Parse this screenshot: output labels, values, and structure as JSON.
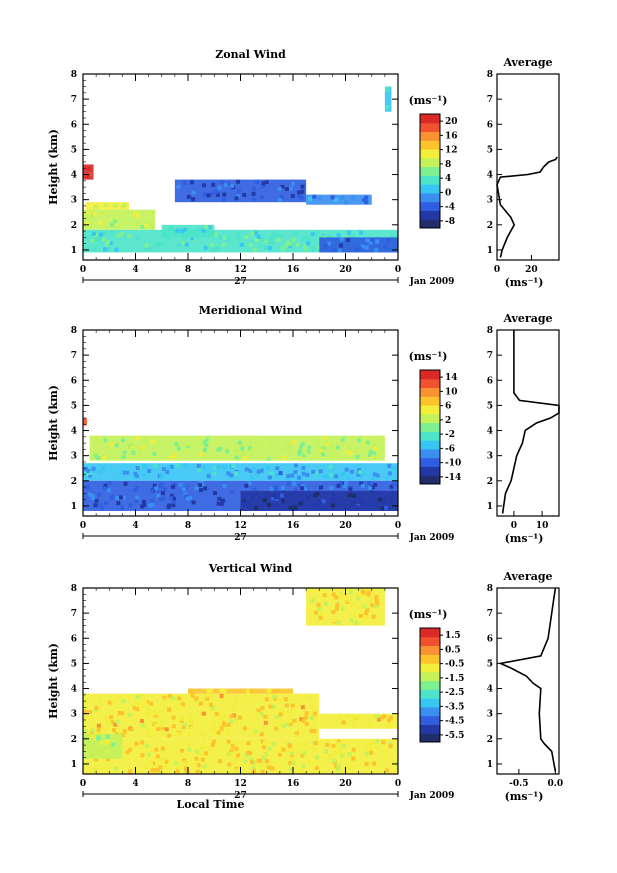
{
  "figure": {
    "xlabel": "Local Time",
    "ylabel": "Height (km)",
    "day_label": "27",
    "month_label": "Jan 2009",
    "unit_label": "(ms⁻¹)",
    "avg_title": "Average"
  },
  "chart_data": [
    {
      "type": "heatmap",
      "title": "Zonal Wind",
      "xlabel": "",
      "ylabel": "Height (km)",
      "x_ticks": [
        "0",
        "4",
        "8",
        "12",
        "16",
        "20",
        "0"
      ],
      "x_range": [
        0,
        24
      ],
      "y_ticks": [
        "1",
        "2",
        "3",
        "4",
        "5",
        "6",
        "7",
        "8"
      ],
      "y_range": [
        0.6,
        8.0
      ],
      "colorbar": {
        "label": "(ms⁻¹)",
        "ticks": [
          "-8",
          "-4",
          "0",
          "4",
          "8",
          "12",
          "16",
          "20"
        ],
        "range": [
          -10,
          22
        ]
      },
      "regions": [
        {
          "t": [
            0,
            0.8
          ],
          "h": [
            3.8,
            4.4
          ],
          "value": 21
        },
        {
          "t": [
            0.2,
            3.5
          ],
          "h": [
            2.6,
            2.9
          ],
          "value": 10
        },
        {
          "t": [
            0,
            5.5
          ],
          "h": [
            1.8,
            2.6
          ],
          "value": 8
        },
        {
          "t": [
            0,
            24
          ],
          "h": [
            0.9,
            1.8
          ],
          "value": 4
        },
        {
          "t": [
            6,
            10
          ],
          "h": [
            1.5,
            2.0
          ],
          "value": 3
        },
        {
          "t": [
            18,
            24
          ],
          "h": [
            0.9,
            1.5
          ],
          "value": -3
        },
        {
          "t": [
            7,
            17
          ],
          "h": [
            2.9,
            3.8
          ],
          "value": -4
        },
        {
          "t": [
            17,
            22
          ],
          "h": [
            2.8,
            3.2
          ],
          "value": -2
        },
        {
          "t": [
            23,
            23.5
          ],
          "h": [
            6.5,
            7.5
          ],
          "value": 2
        }
      ],
      "average": {
        "xticks": [
          "0",
          "20"
        ],
        "xrange": [
          0,
          36
        ],
        "xlabel": "(ms⁻¹)",
        "profile": [
          [
            0.7,
            2
          ],
          [
            1.0,
            3
          ],
          [
            1.5,
            6
          ],
          [
            2.0,
            10
          ],
          [
            2.3,
            8
          ],
          [
            2.8,
            2
          ],
          [
            3.2,
            1
          ],
          [
            3.6,
            0
          ],
          [
            3.9,
            2
          ],
          [
            4.0,
            18
          ],
          [
            4.1,
            25
          ],
          [
            4.3,
            27
          ],
          [
            4.5,
            30
          ],
          [
            4.6,
            34
          ],
          [
            4.7,
            35
          ]
        ]
      }
    },
    {
      "type": "heatmap",
      "title": "Meridional Wind",
      "xlabel": "",
      "ylabel": "Height (km)",
      "x_ticks": [
        "0",
        "4",
        "8",
        "12",
        "16",
        "20",
        "0"
      ],
      "x_range": [
        0,
        24
      ],
      "y_ticks": [
        "1",
        "2",
        "3",
        "4",
        "5",
        "6",
        "7",
        "8"
      ],
      "y_range": [
        0.6,
        8.0
      ],
      "colorbar": {
        "label": "(ms⁻¹)",
        "ticks": [
          "-14",
          "-10",
          "-6",
          "-2",
          "2",
          "6",
          "10",
          "14"
        ],
        "range": [
          -16,
          16
        ]
      },
      "regions": [
        {
          "t": [
            0,
            0.3
          ],
          "h": [
            4.2,
            4.5
          ],
          "value": 12
        },
        {
          "t": [
            0.5,
            23
          ],
          "h": [
            2.8,
            3.8
          ],
          "value": 2
        },
        {
          "t": [
            0,
            24
          ],
          "h": [
            2.0,
            2.7
          ],
          "value": -6
        },
        {
          "t": [
            0,
            24
          ],
          "h": [
            0.8,
            2.0
          ],
          "value": -10
        },
        {
          "t": [
            12,
            24
          ],
          "h": [
            0.8,
            1.6
          ],
          "value": -13
        }
      ],
      "average": {
        "xticks": [
          "0",
          "10"
        ],
        "xrange": [
          -6,
          16
        ],
        "xlabel": "(ms⁻¹)",
        "profile": [
          [
            0.7,
            -4
          ],
          [
            1.5,
            -3
          ],
          [
            2.0,
            -1
          ],
          [
            2.5,
            0
          ],
          [
            3.0,
            1
          ],
          [
            3.5,
            3
          ],
          [
            4.0,
            4
          ],
          [
            4.3,
            8
          ],
          [
            4.5,
            13
          ],
          [
            4.7,
            16
          ],
          [
            5.0,
            16
          ],
          [
            5.2,
            2
          ],
          [
            5.5,
            0
          ],
          [
            6.0,
            0
          ],
          [
            7.0,
            0
          ],
          [
            8.0,
            0
          ]
        ]
      }
    },
    {
      "type": "heatmap",
      "title": "Vertical Wind",
      "xlabel": "Local Time",
      "ylabel": "Height (km)",
      "x_ticks": [
        "0",
        "4",
        "8",
        "12",
        "16",
        "20",
        "0"
      ],
      "x_range": [
        0,
        24
      ],
      "y_ticks": [
        "1",
        "2",
        "3",
        "4",
        "5",
        "6",
        "7",
        "8"
      ],
      "y_range": [
        0.6,
        8.0
      ],
      "colorbar": {
        "label": "(ms⁻¹)",
        "ticks": [
          "-5.5",
          "-4.5",
          "-3.5",
          "-2.5",
          "-1.5",
          "-0.5",
          "0.5",
          "1.5"
        ],
        "range": [
          -6,
          2
        ]
      },
      "regions": [
        {
          "t": [
            0,
            24
          ],
          "h": [
            0.6,
            2.0
          ],
          "value": -0.6
        },
        {
          "t": [
            0,
            18
          ],
          "h": [
            2.0,
            3.8
          ],
          "value": -0.5
        },
        {
          "t": [
            8,
            16
          ],
          "h": [
            3.8,
            4.0
          ],
          "value": -0.4
        },
        {
          "t": [
            18,
            24
          ],
          "h": [
            2.4,
            3.0
          ],
          "value": -0.5
        },
        {
          "t": [
            0,
            3
          ],
          "h": [
            1.2,
            2.2
          ],
          "value": -1.2
        },
        {
          "t": [
            17,
            23
          ],
          "h": [
            6.5,
            8.0
          ],
          "value": -0.7
        }
      ],
      "average": {
        "xticks": [
          "-0.5",
          "0.0"
        ],
        "xrange": [
          -0.8,
          0.05
        ],
        "xlabel": "(ms⁻¹)",
        "profile": [
          [
            0.7,
            0
          ],
          [
            1.5,
            -0.05
          ],
          [
            1.8,
            -0.15
          ],
          [
            2.0,
            -0.2
          ],
          [
            3.0,
            -0.22
          ],
          [
            4.0,
            -0.2
          ],
          [
            4.2,
            -0.3
          ],
          [
            4.5,
            -0.4
          ],
          [
            4.8,
            -0.6
          ],
          [
            5.0,
            -0.75
          ],
          [
            5.3,
            -0.2
          ],
          [
            6.0,
            -0.1
          ],
          [
            7.0,
            -0.05
          ],
          [
            8.0,
            0
          ]
        ]
      }
    }
  ],
  "colormap": [
    "#1f2d6b",
    "#2439a6",
    "#2f5fe0",
    "#3a8ff0",
    "#39c6f3",
    "#4de4c9",
    "#7ff08f",
    "#c4f25a",
    "#f2ee3c",
    "#fcc32c",
    "#f89232",
    "#f0522f",
    "#d92a26"
  ]
}
